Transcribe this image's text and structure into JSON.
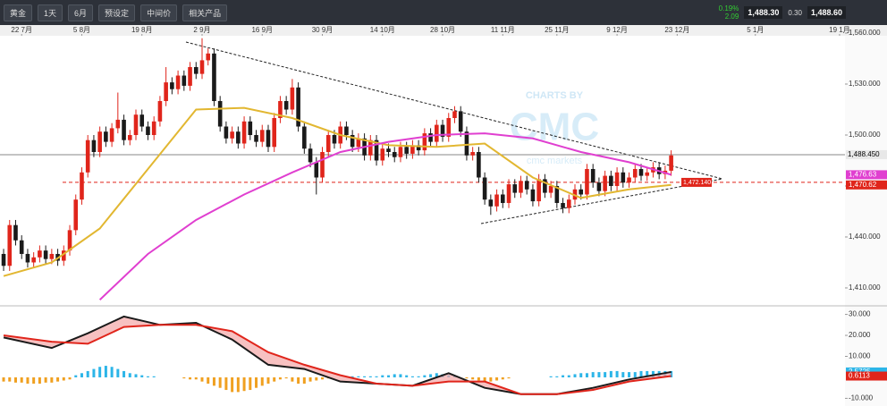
{
  "toolbar": {
    "symbol": "黄金",
    "interval": "1天",
    "range": "6月",
    "buttons": [
      "预设定",
      "中间价",
      "相关产品"
    ],
    "change_pct": "0.19%",
    "change": "2.09",
    "sell": "1,488.30",
    "spread": "0.30",
    "buy": "1,488.60"
  },
  "watermark": {
    "top": "CHARTS BY",
    "logo": "CMC",
    "bottom": "cmc markets"
  },
  "chart_data": [
    {
      "type": "candlestick",
      "xlim": [
        -0.6,
        139.9
      ],
      "xticks": [
        {
          "value": 3,
          "label": "22 7月"
        },
        {
          "value": 13,
          "label": "5 8月"
        },
        {
          "value": 23,
          "label": "19 8月"
        },
        {
          "value": 33,
          "label": "2 9月"
        },
        {
          "value": 43,
          "label": "16 9月"
        },
        {
          "value": 53,
          "label": "30 9月"
        },
        {
          "value": 63,
          "label": "14 10月"
        },
        {
          "value": 73,
          "label": "28 10月"
        },
        {
          "value": 83,
          "label": "11 11月"
        },
        {
          "value": 92,
          "label": "25 11月"
        },
        {
          "value": 102,
          "label": "9 12月"
        },
        {
          "value": 112,
          "label": "23 12月"
        },
        {
          "value": 125,
          "label": "5 1月"
        },
        {
          "value": 139,
          "label": "19 1月"
        }
      ],
      "ylim": [
        1400.5,
        1563.7
      ],
      "yticks": [
        {
          "value": 1410,
          "label": "1,410.000"
        },
        {
          "value": 1440,
          "label": "1,440.000"
        },
        {
          "value": 1470,
          "label": "1,470.000"
        },
        {
          "value": 1500,
          "label": "1,500.000"
        },
        {
          "value": 1530,
          "label": "1,530.000"
        },
        {
          "value": 1560,
          "label": "1,560.000"
        }
      ],
      "up_color": "#e0251b",
      "down_color": "#1a1a1a",
      "ohlc": [
        [
          1430,
          1433,
          1420,
          1423
        ],
        [
          1423,
          1450,
          1420,
          1447
        ],
        [
          1447,
          1450,
          1435,
          1438
        ],
        [
          1438,
          1441,
          1427,
          1430
        ],
        [
          1430,
          1433,
          1422,
          1425
        ],
        [
          1425,
          1431,
          1422,
          1428
        ],
        [
          1428,
          1435,
          1425,
          1432
        ],
        [
          1432,
          1435,
          1424,
          1427
        ],
        [
          1427,
          1433,
          1424,
          1430
        ],
        [
          1430,
          1433,
          1423,
          1426
        ],
        [
          1426,
          1435,
          1423,
          1432
        ],
        [
          1432,
          1447,
          1429,
          1444
        ],
        [
          1444,
          1465,
          1441,
          1462
        ],
        [
          1462,
          1481,
          1459,
          1478
        ],
        [
          1478,
          1500,
          1475,
          1497
        ],
        [
          1497,
          1500,
          1487,
          1490
        ],
        [
          1490,
          1505,
          1487,
          1502
        ],
        [
          1502,
          1505,
          1493,
          1496
        ],
        [
          1496,
          1507,
          1493,
          1504
        ],
        [
          1504,
          1525,
          1501,
          1509
        ],
        [
          1509,
          1512,
          1494,
          1497
        ],
        [
          1497,
          1503,
          1494,
          1500
        ],
        [
          1500,
          1515,
          1497,
          1512
        ],
        [
          1512,
          1515,
          1502,
          1505
        ],
        [
          1505,
          1508,
          1497,
          1500
        ],
        [
          1500,
          1511,
          1497,
          1508
        ],
        [
          1508,
          1523,
          1505,
          1520
        ],
        [
          1520,
          1540,
          1517,
          1531
        ],
        [
          1531,
          1534,
          1524,
          1527
        ],
        [
          1527,
          1538,
          1524,
          1535
        ],
        [
          1535,
          1538,
          1526,
          1529
        ],
        [
          1529,
          1543,
          1526,
          1540
        ],
        [
          1540,
          1543,
          1533,
          1536
        ],
        [
          1536,
          1557,
          1533,
          1544
        ],
        [
          1544,
          1551,
          1541,
          1548
        ],
        [
          1548,
          1551,
          1517,
          1520
        ],
        [
          1520,
          1523,
          1502,
          1505
        ],
        [
          1505,
          1508,
          1495,
          1498
        ],
        [
          1498,
          1505,
          1495,
          1502
        ],
        [
          1502,
          1505,
          1492,
          1495
        ],
        [
          1495,
          1511,
          1492,
          1508
        ],
        [
          1508,
          1511,
          1497,
          1500
        ],
        [
          1500,
          1503,
          1493,
          1496
        ],
        [
          1496,
          1506,
          1493,
          1503
        ],
        [
          1503,
          1506,
          1490,
          1493
        ],
        [
          1493,
          1513,
          1490,
          1510
        ],
        [
          1510,
          1523,
          1507,
          1520
        ],
        [
          1520,
          1523,
          1512,
          1515
        ],
        [
          1515,
          1533,
          1512,
          1528
        ],
        [
          1528,
          1531,
          1502,
          1505
        ],
        [
          1505,
          1508,
          1489,
          1492
        ],
        [
          1492,
          1495,
          1481,
          1484
        ],
        [
          1484,
          1487,
          1465,
          1475
        ],
        [
          1475,
          1493,
          1472,
          1490
        ],
        [
          1490,
          1503,
          1487,
          1500
        ],
        [
          1500,
          1503,
          1492,
          1495
        ],
        [
          1495,
          1508,
          1492,
          1505
        ],
        [
          1505,
          1508,
          1497,
          1500
        ],
        [
          1500,
          1503,
          1490,
          1493
        ],
        [
          1493,
          1501,
          1490,
          1498
        ],
        [
          1498,
          1501,
          1485,
          1488
        ],
        [
          1488,
          1500,
          1485,
          1497
        ],
        [
          1497,
          1500,
          1482,
          1485
        ],
        [
          1485,
          1495,
          1482,
          1492
        ],
        [
          1492,
          1495,
          1487,
          1490
        ],
        [
          1490,
          1493,
          1484,
          1487
        ],
        [
          1487,
          1496,
          1484,
          1493
        ],
        [
          1493,
          1496,
          1486,
          1489
        ],
        [
          1489,
          1497,
          1486,
          1494
        ],
        [
          1494,
          1497,
          1488,
          1491
        ],
        [
          1491,
          1504,
          1488,
          1501
        ],
        [
          1501,
          1504,
          1493,
          1496
        ],
        [
          1496,
          1509,
          1493,
          1506
        ],
        [
          1506,
          1509,
          1496,
          1499
        ],
        [
          1499,
          1513,
          1496,
          1510
        ],
        [
          1510,
          1517,
          1507,
          1514
        ],
        [
          1514,
          1517,
          1499,
          1502
        ],
        [
          1502,
          1505,
          1485,
          1488
        ],
        [
          1488,
          1493,
          1485,
          1490
        ],
        [
          1490,
          1493,
          1472,
          1475
        ],
        [
          1475,
          1478,
          1459,
          1462
        ],
        [
          1462,
          1465,
          1453,
          1458
        ],
        [
          1458,
          1468,
          1455,
          1465
        ],
        [
          1465,
          1468,
          1457,
          1460
        ],
        [
          1460,
          1474,
          1457,
          1471
        ],
        [
          1471,
          1474,
          1463,
          1466
        ],
        [
          1466,
          1476,
          1463,
          1473
        ],
        [
          1473,
          1476,
          1465,
          1468
        ],
        [
          1468,
          1471,
          1458,
          1461
        ],
        [
          1461,
          1477,
          1458,
          1474
        ],
        [
          1474,
          1477,
          1463,
          1466
        ],
        [
          1466,
          1473,
          1463,
          1470
        ],
        [
          1470,
          1473,
          1457,
          1460
        ],
        [
          1460,
          1463,
          1454,
          1457
        ],
        [
          1457,
          1465,
          1454,
          1462
        ],
        [
          1462,
          1471,
          1459,
          1468
        ],
        [
          1468,
          1471,
          1462,
          1465
        ],
        [
          1465,
          1483,
          1462,
          1480
        ],
        [
          1480,
          1483,
          1469,
          1472
        ],
        [
          1472,
          1475,
          1464,
          1467
        ],
        [
          1467,
          1479,
          1464,
          1476
        ],
        [
          1476,
          1479,
          1467,
          1470
        ],
        [
          1470,
          1481,
          1467,
          1478
        ],
        [
          1478,
          1481,
          1469,
          1472
        ],
        [
          1472,
          1478,
          1469,
          1475
        ],
        [
          1475,
          1483,
          1472,
          1480
        ],
        [
          1480,
          1483,
          1473,
          1476
        ],
        [
          1476,
          1481,
          1473,
          1478
        ],
        [
          1478,
          1484,
          1475,
          1481
        ],
        [
          1481,
          1484,
          1474,
          1477
        ],
        [
          1477,
          1482,
          1474,
          1479
        ],
        [
          1479,
          1491,
          1476,
          1488
        ]
      ],
      "lines": [
        {
          "color": "#e2b731",
          "x": [
            0,
            8,
            16,
            24,
            32,
            40,
            48,
            56,
            64,
            72,
            80,
            88,
            96,
            104,
            111
          ],
          "values": [
            1417,
            1425,
            1445,
            1480,
            1515,
            1516,
            1510,
            1500,
            1494,
            1493,
            1495,
            1475,
            1463,
            1468,
            1470.62
          ]
        },
        {
          "color": "#e03fd0",
          "x": [
            16,
            24,
            32,
            40,
            48,
            56,
            64,
            72,
            80,
            88,
            96,
            104,
            111
          ],
          "values": [
            1403,
            1430,
            1450,
            1465,
            1478,
            1490,
            1496,
            1500,
            1501,
            1498,
            1490,
            1484,
            1476.63
          ]
        }
      ],
      "levels": [
        {
          "value": 1488.45,
          "label": "1,488.450",
          "color": "#8a8a8a"
        },
        {
          "value": 1472.14,
          "label": "1,472.140",
          "color": "#e0251b"
        }
      ],
      "tags": [
        {
          "value": 1476.63,
          "label": "1,476.63",
          "color": "#e03fd0"
        },
        {
          "value": 1470.62,
          "label": "1,470.62",
          "color": "#e0251b"
        }
      ]
    },
    {
      "type": "macd",
      "xlim": [
        -0.6,
        139.9
      ],
      "ylim": [
        -12.8,
        32.8
      ],
      "yticks": [
        {
          "value": -10,
          "label": "-10.000"
        },
        {
          "value": 10,
          "label": "10.000"
        },
        {
          "value": 20,
          "label": "20.000"
        },
        {
          "value": 30,
          "label": "30.000"
        }
      ],
      "histogram": {
        "up_color": "#2cb5e8",
        "down_color": "#f0a020",
        "values": [
          -2,
          -2,
          -2.5,
          -2.5,
          -3,
          -3,
          -3,
          -2.5,
          -2.5,
          -2,
          -1.5,
          -1,
          1,
          2,
          3,
          4,
          5,
          5.5,
          5,
          4,
          3,
          2,
          1.5,
          1,
          0.5,
          0.5,
          0,
          0,
          0,
          0,
          -0.5,
          -1,
          -1,
          -2,
          -3,
          -4,
          -5,
          -6,
          -7,
          -7,
          -6.5,
          -6,
          -5,
          -4,
          -3,
          -2,
          -1,
          -0.5,
          -2,
          -3,
          -3,
          -2,
          -1.5,
          -1,
          -0.5,
          0,
          0,
          0.5,
          0.5,
          0.5,
          0.5,
          0.5,
          0.5,
          1,
          1,
          1.5,
          1.5,
          1,
          0.5,
          0.5,
          1,
          1.5,
          2,
          1.5,
          1,
          0.5,
          0,
          -0.5,
          -1,
          -1.5,
          -2,
          -2,
          -1.5,
          -1,
          -0.5,
          0,
          0,
          0,
          0,
          0,
          0,
          0.5,
          0.5,
          1,
          1,
          1.5,
          2,
          2,
          2.5,
          2.5,
          2.5,
          3,
          3,
          2.5,
          2.5,
          2.5,
          3,
          3,
          3,
          3,
          3,
          3
        ]
      },
      "lines": [
        {
          "color": "#1a1a1a",
          "x": [
            0,
            8,
            14,
            20,
            26,
            32,
            38,
            44,
            50,
            56,
            62,
            68,
            74,
            80,
            86,
            92,
            98,
            104,
            111
          ],
          "values": [
            19,
            14,
            21,
            29,
            25,
            26,
            18,
            6,
            4,
            -2,
            -3,
            -4,
            2,
            -5,
            -8,
            -8,
            -5,
            -1,
            2.5725
          ]
        },
        {
          "color": "#e0251b",
          "x": [
            0,
            8,
            14,
            20,
            26,
            32,
            38,
            44,
            50,
            56,
            62,
            68,
            74,
            80,
            86,
            92,
            98,
            104,
            111
          ],
          "values": [
            20,
            17,
            16,
            24,
            25,
            25,
            22,
            12,
            6,
            1,
            -3,
            -4,
            -2,
            -2,
            -8,
            -8,
            -6,
            -2,
            0.6113
          ]
        }
      ],
      "tags": [
        {
          "value": 2.5725,
          "label": "2.5725",
          "color": "#2cb5e8"
        },
        {
          "value": 0.6113,
          "label": "0.6113",
          "color": "#e0251b"
        }
      ]
    }
  ]
}
